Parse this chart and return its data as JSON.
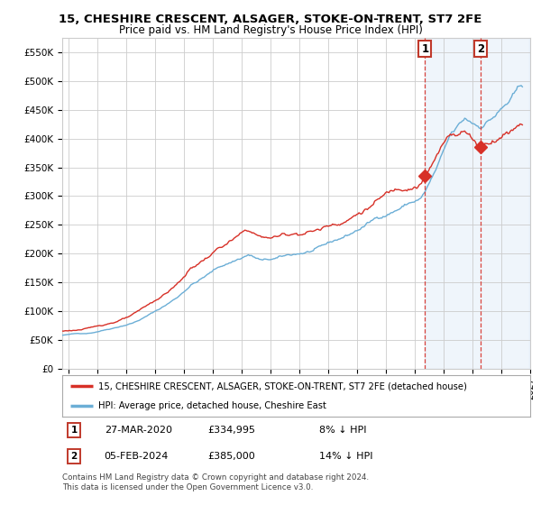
{
  "title": "15, CHESHIRE CRESCENT, ALSAGER, STOKE-ON-TRENT, ST7 2FE",
  "subtitle": "Price paid vs. HM Land Registry's House Price Index (HPI)",
  "ylim": [
    0,
    575000
  ],
  "yticks": [
    0,
    50000,
    100000,
    150000,
    200000,
    250000,
    300000,
    350000,
    400000,
    450000,
    500000,
    550000
  ],
  "ytick_labels": [
    "£0",
    "£50K",
    "£100K",
    "£150K",
    "£200K",
    "£250K",
    "£300K",
    "£350K",
    "£400K",
    "£450K",
    "£500K",
    "£550K"
  ],
  "hpi_color": "#6baed6",
  "price_color": "#d73027",
  "point1_price": 334995,
  "point2_price": 385000,
  "annotation1_label": "1",
  "annotation2_label": "2",
  "legend_line1": "15, CHESHIRE CRESCENT, ALSAGER, STOKE-ON-TRENT, ST7 2FE (detached house)",
  "legend_line2": "HPI: Average price, detached house, Cheshire East",
  "note1_num": "1",
  "note1_date": "27-MAR-2020",
  "note1_price": "£334,995",
  "note1_pct": "8% ↓ HPI",
  "note2_num": "2",
  "note2_date": "05-FEB-2024",
  "note2_price": "£385,000",
  "note2_pct": "14% ↓ HPI",
  "footer": "Contains HM Land Registry data © Crown copyright and database right 2024.\nThis data is licensed under the Open Government Licence v3.0.",
  "background_color": "#ffffff",
  "grid_color": "#cccccc",
  "shaded_region_color": "#ddeeff"
}
